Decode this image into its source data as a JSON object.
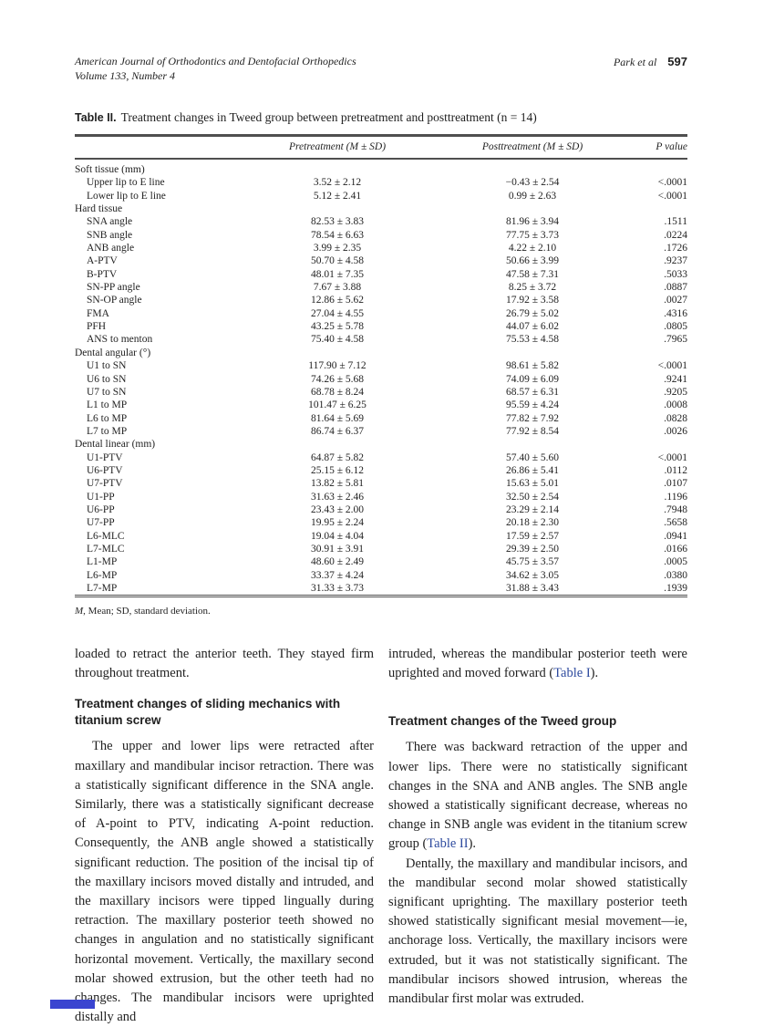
{
  "header": {
    "journal": "American Journal of Orthodontics and Dentofacial Orthopedics",
    "volume": "Volume 133, Number 4",
    "authors": "Park et al",
    "page_number": "597"
  },
  "table": {
    "label": "Table II.",
    "title": "Treatment changes in Tweed group between pretreatment and posttreatment (n = 14)",
    "col_headers": {
      "pre": "Pretreatment (M ± SD)",
      "post": "Posttreatment (M ± SD)",
      "p": "P value"
    },
    "rows": [
      {
        "type": "section",
        "label": "Soft tissue (mm)"
      },
      {
        "type": "data",
        "label": "Upper lip to E line",
        "pre": "3.52 ± 2.12",
        "post": "−0.43 ± 2.54",
        "p": "<.0001"
      },
      {
        "type": "data",
        "label": "Lower lip to E line",
        "pre": "5.12 ± 2.41",
        "post": "0.99 ± 2.63",
        "p": "<.0001"
      },
      {
        "type": "section",
        "label": "Hard tissue"
      },
      {
        "type": "data",
        "label": "SNA angle",
        "pre": "82.53 ± 3.83",
        "post": "81.96 ± 3.94",
        "p": ".1511"
      },
      {
        "type": "data",
        "label": "SNB angle",
        "pre": "78.54 ± 6.63",
        "post": "77.75 ± 3.73",
        "p": ".0224"
      },
      {
        "type": "data",
        "label": "ANB angle",
        "pre": "3.99 ± 2.35",
        "post": "4.22 ± 2.10",
        "p": ".1726"
      },
      {
        "type": "data",
        "label": "A-PTV",
        "pre": "50.70 ± 4.58",
        "post": "50.66 ± 3.99",
        "p": ".9237"
      },
      {
        "type": "data",
        "label": "B-PTV",
        "pre": "48.01 ± 7.35",
        "post": "47.58 ± 7.31",
        "p": ".5033"
      },
      {
        "type": "data",
        "label": "SN-PP angle",
        "pre": "7.67 ± 3.88",
        "post": "8.25 ± 3.72",
        "p": ".0887"
      },
      {
        "type": "data",
        "label": "SN-OP angle",
        "pre": "12.86 ± 5.62",
        "post": "17.92 ± 3.58",
        "p": ".0027"
      },
      {
        "type": "data",
        "label": "FMA",
        "pre": "27.04 ± 4.55",
        "post": "26.79 ± 5.02",
        "p": ".4316"
      },
      {
        "type": "data",
        "label": "PFH",
        "pre": "43.25 ± 5.78",
        "post": "44.07 ± 6.02",
        "p": ".0805"
      },
      {
        "type": "data",
        "label": "ANS to menton",
        "pre": "75.40 ± 4.58",
        "post": "75.53 ± 4.58",
        "p": ".7965"
      },
      {
        "type": "section",
        "label": "Dental angular (°)"
      },
      {
        "type": "data",
        "label": "U1 to SN",
        "pre": "117.90 ± 7.12",
        "post": "98.61 ± 5.82",
        "p": "<.0001"
      },
      {
        "type": "data",
        "label": "U6 to SN",
        "pre": "74.26 ± 5.68",
        "post": "74.09 ± 6.09",
        "p": ".9241"
      },
      {
        "type": "data",
        "label": "U7 to SN",
        "pre": "68.78 ± 8.24",
        "post": "68.57 ± 6.31",
        "p": ".9205"
      },
      {
        "type": "data",
        "label": "L1 to MP",
        "pre": "101.47 ± 6.25",
        "post": "95.59 ± 4.24",
        "p": ".0008"
      },
      {
        "type": "data",
        "label": "L6 to MP",
        "pre": "81.64 ± 5.69",
        "post": "77.82 ± 7.92",
        "p": ".0828"
      },
      {
        "type": "data",
        "label": "L7 to MP",
        "pre": "86.74 ± 6.37",
        "post": "77.92 ± 8.54",
        "p": ".0026"
      },
      {
        "type": "section",
        "label": "Dental linear (mm)"
      },
      {
        "type": "data",
        "label": "U1-PTV",
        "pre": "64.87 ± 5.82",
        "post": "57.40 ± 5.60",
        "p": "<.0001"
      },
      {
        "type": "data",
        "label": "U6-PTV",
        "pre": "25.15 ± 6.12",
        "post": "26.86 ± 5.41",
        "p": ".0112"
      },
      {
        "type": "data",
        "label": "U7-PTV",
        "pre": "13.82 ± 5.81",
        "post": "15.63 ± 5.01",
        "p": ".0107"
      },
      {
        "type": "data",
        "label": "U1-PP",
        "pre": "31.63 ± 2.46",
        "post": "32.50 ± 2.54",
        "p": ".1196"
      },
      {
        "type": "data",
        "label": "U6-PP",
        "pre": "23.43 ± 2.00",
        "post": "23.29 ± 2.14",
        "p": ".7948"
      },
      {
        "type": "data",
        "label": "U7-PP",
        "pre": "19.95 ± 2.24",
        "post": "20.18 ± 2.30",
        "p": ".5658"
      },
      {
        "type": "data",
        "label": "L6-MLC",
        "pre": "19.04 ± 4.04",
        "post": "17.59 ± 2.57",
        "p": ".0941"
      },
      {
        "type": "data",
        "label": "L7-MLC",
        "pre": "30.91 ± 3.91",
        "post": "29.39 ± 2.50",
        "p": ".0166"
      },
      {
        "type": "data",
        "label": "L1-MP",
        "pre": "48.60 ± 2.49",
        "post": "45.75 ± 3.57",
        "p": ".0005"
      },
      {
        "type": "data",
        "label": "L6-MP",
        "pre": "33.37 ± 4.24",
        "post": "34.62 ± 3.05",
        "p": ".0380"
      },
      {
        "type": "data",
        "label": "L7-MP",
        "pre": "31.33 ± 3.73",
        "post": "31.88 ± 3.43",
        "p": ".1939"
      }
    ],
    "footnote": [
      {
        "text": "M",
        "italic": true
      },
      {
        "text": ", Mean; SD, standard deviation.",
        "italic": false
      }
    ]
  },
  "body": {
    "left": [
      {
        "type": "paragraph",
        "indent": false,
        "segments": [
          {
            "text": "loaded to retract the anterior teeth. They stayed firm throughout treatment."
          }
        ]
      },
      {
        "type": "heading",
        "segments": [
          {
            "text": "Treatment changes of sliding mechanics with titanium screw"
          }
        ]
      },
      {
        "type": "paragraph",
        "indent": true,
        "segments": [
          {
            "text": "The upper and lower lips were retracted after maxillary and mandibular incisor retraction. There was a statistically significant difference in the SNA angle. Similarly, there was a statistically significant decrease of A-point to PTV, indicating A-point reduction. Consequently, the ANB angle showed a statistically significant reduction. The position of the incisal tip of the maxillary incisors moved distally and intruded, and the maxillary incisors were tipped lingually during retraction. The maxillary posterior teeth showed no changes in angulation and no statistically significant horizontal movement. Vertically, the maxillary second molar showed extrusion, but the other teeth had no changes. The mandibular incisors were uprighted distally and"
          }
        ]
      }
    ],
    "right": [
      {
        "type": "paragraph",
        "indent": false,
        "segments": [
          {
            "text": "intruded, whereas the mandibular posterior teeth were uprighted and moved forward ("
          },
          {
            "text": "Table I",
            "link": true
          },
          {
            "text": ")."
          }
        ]
      },
      {
        "type": "heading",
        "extra_space": true,
        "segments": [
          {
            "text": "Treatment changes of the Tweed group"
          }
        ]
      },
      {
        "type": "paragraph",
        "indent": true,
        "segments": [
          {
            "text": "There was backward retraction of the upper and lower lips. There were no statistically significant changes in the SNA and ANB angles. The SNB angle showed a statistically significant decrease, whereas no change in SNB angle was evident in the titanium screw group ("
          },
          {
            "text": "Table II",
            "link": true
          },
          {
            "text": ")."
          }
        ]
      },
      {
        "type": "paragraph",
        "indent": true,
        "segments": [
          {
            "text": "Dentally, the maxillary and mandibular incisors, and the mandibular second molar showed statistically significant uprighting. The maxillary posterior teeth showed statistically significant mesial movement—ie, anchorage loss. Vertically, the maxillary incisors were extruded, but it was not statistically significant. The mandibular incisors showed intrusion, whereas the mandibular first molar was extruded."
          }
        ]
      }
    ]
  },
  "colors": {
    "text": "#1f1f1f",
    "link": "#2d4a9e",
    "rule": "#4f4f4f",
    "footer_mark": "#3a45d0"
  }
}
